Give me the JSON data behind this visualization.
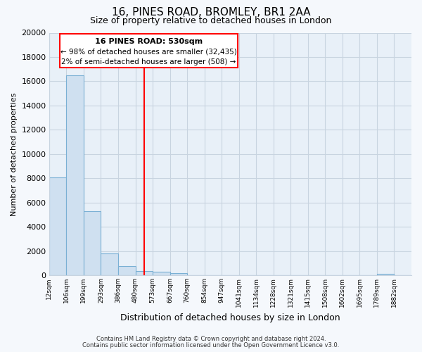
{
  "title": "16, PINES ROAD, BROMLEY, BR1 2AA",
  "subtitle": "Size of property relative to detached houses in London",
  "xlabel": "Distribution of detached houses by size in London",
  "ylabel": "Number of detached properties",
  "bar_color": "#cfe0f0",
  "bar_edge_color": "#7ab0d4",
  "plot_bg_color": "#e8f0f8",
  "fig_bg_color": "#f5f8fc",
  "grid_color": "#c8d4e0",
  "bin_labels": [
    "12sqm",
    "106sqm",
    "199sqm",
    "293sqm",
    "386sqm",
    "480sqm",
    "573sqm",
    "667sqm",
    "760sqm",
    "854sqm",
    "947sqm",
    "1041sqm",
    "1134sqm",
    "1228sqm",
    "1321sqm",
    "1415sqm",
    "1508sqm",
    "1602sqm",
    "1695sqm",
    "1789sqm",
    "1882sqm"
  ],
  "bar_heights": [
    8100,
    16500,
    5300,
    1800,
    750,
    350,
    280,
    180,
    0,
    0,
    0,
    0,
    0,
    0,
    0,
    0,
    0,
    0,
    0,
    150,
    0
  ],
  "red_line_bin": 5,
  "annotation_title": "16 PINES ROAD: 530sqm",
  "annotation_line1": "← 98% of detached houses are smaller (32,435)",
  "annotation_line2": "2% of semi-detached houses are larger (508) →",
  "ylim": [
    0,
    20000
  ],
  "yticks": [
    0,
    2000,
    4000,
    6000,
    8000,
    10000,
    12000,
    14000,
    16000,
    18000,
    20000
  ],
  "footer1": "Contains HM Land Registry data © Crown copyright and database right 2024.",
  "footer2": "Contains public sector information licensed under the Open Government Licence v3.0."
}
